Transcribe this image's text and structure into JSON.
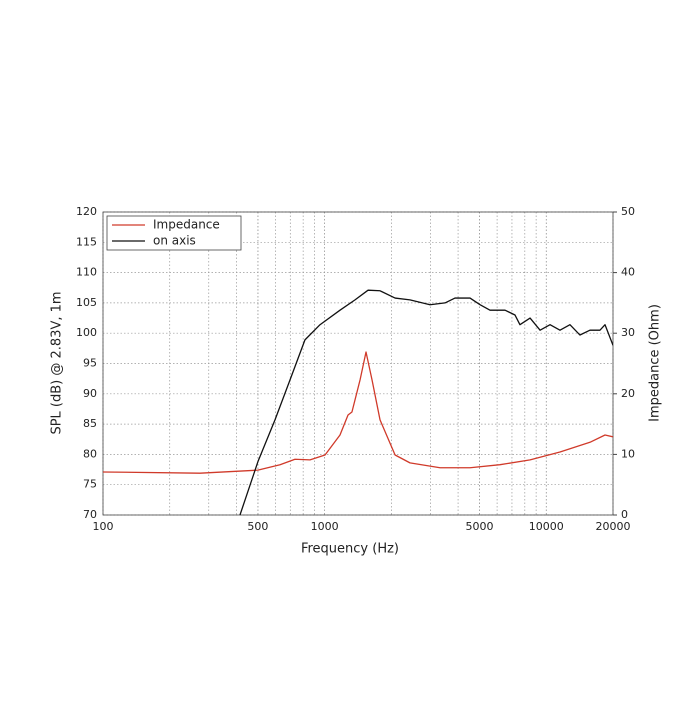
{
  "chart_data": {
    "type": "line",
    "x_label": "Frequency (Hz)",
    "y_label": "SPL (dB) @ 2.83V, 1m",
    "y2_label": "Impedance (Ohm)",
    "x_scale": "log",
    "xlim": [
      100,
      20000
    ],
    "xticks": [
      100,
      500,
      1000,
      5000,
      10000,
      20000
    ],
    "ylim": [
      70,
      120
    ],
    "yticks": [
      70,
      75,
      80,
      85,
      90,
      95,
      100,
      105,
      110,
      115,
      120
    ],
    "y2lim": [
      0,
      50
    ],
    "y2ticks": [
      0,
      10,
      20,
      30,
      40,
      50
    ],
    "grid": true,
    "minor_grid": true,
    "legend": "upper left",
    "series": [
      {
        "name": "Impedance",
        "color": "#d03a2a",
        "axis": "y2",
        "x": [
          100,
          274,
          500,
          629,
          735,
          859,
          1004,
          1173,
          1275,
          1328,
          1445,
          1537,
          1636,
          1778,
          2079,
          2427,
          3317,
          4529,
          6185,
          8451,
          11530,
          15740,
          18410,
          20000
        ],
        "values": [
          7.1,
          6.9,
          7.4,
          8.3,
          9.2,
          9.1,
          9.9,
          13.2,
          16.5,
          17,
          22.3,
          26.9,
          22.3,
          15.7,
          9.9,
          8.6,
          7.8,
          7.8,
          8.3,
          9.1,
          10.4,
          12,
          13.2,
          12.9
        ]
      },
      {
        "name": "on axis",
        "color": "#111111",
        "x": [
          415,
          500,
          597,
          698,
          815,
          953,
          1173,
          1371,
          1570,
          1778,
          2079,
          2427,
          2988,
          3492,
          3873,
          4529,
          5023,
          5572,
          6516,
          7227,
          7606,
          8451,
          9376,
          10400,
          11530,
          12790,
          14190,
          15740,
          17470,
          18410,
          20000
        ],
        "values": [
          70,
          78.8,
          85.7,
          92.3,
          98.9,
          101.4,
          103.8,
          105.5,
          107.1,
          107,
          105.8,
          105.5,
          104.7,
          105,
          105.8,
          105.8,
          104.7,
          103.8,
          103.8,
          103,
          101.4,
          102.5,
          100.5,
          101.4,
          100.5,
          101.4,
          99.7,
          100.5,
          100.5,
          101.4,
          98
        ]
      }
    ]
  }
}
